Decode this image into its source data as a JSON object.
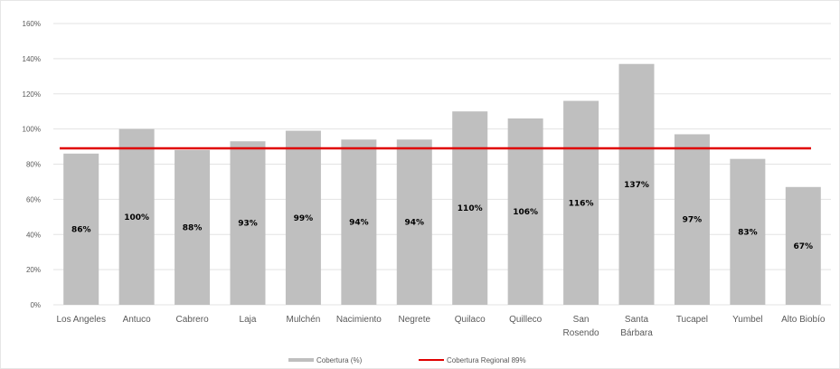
{
  "chart_data": {
    "type": "bar",
    "categories": [
      [
        "Los Angeles"
      ],
      [
        "Antuco"
      ],
      [
        "Cabrero"
      ],
      [
        "Laja"
      ],
      [
        "Mulchén"
      ],
      [
        "Nacimiento"
      ],
      [
        "Negrete"
      ],
      [
        "Quilaco"
      ],
      [
        "Quilleco"
      ],
      [
        "San",
        "Rosendo"
      ],
      [
        "Santa",
        "Bárbara"
      ],
      [
        "Tucapel"
      ],
      [
        "Yumbel"
      ],
      [
        "Alto Biobío"
      ]
    ],
    "series": [
      {
        "name": "Cobertura (%)",
        "values": [
          86,
          100,
          88,
          93,
          99,
          94,
          94,
          110,
          106,
          116,
          137,
          97,
          83,
          67
        ],
        "labels": [
          "86%",
          "100%",
          "88%",
          "93%",
          "99%",
          "94%",
          "94%",
          "110%",
          "106%",
          "116%",
          "137%",
          "97%",
          "83%",
          "67%"
        ],
        "color": "#bfbfbf"
      },
      {
        "name": "Cobertura Regional 89%",
        "type": "line",
        "value": 89,
        "color": "#e00000"
      }
    ],
    "ylim": [
      0,
      160
    ],
    "yticks": [
      0,
      20,
      40,
      60,
      80,
      100,
      120,
      140,
      160
    ],
    "ytick_labels": [
      "0%",
      "20%",
      "40%",
      "60%",
      "80%",
      "100%",
      "120%",
      "140%",
      "160%"
    ],
    "grid": true,
    "legend": "bottom"
  }
}
